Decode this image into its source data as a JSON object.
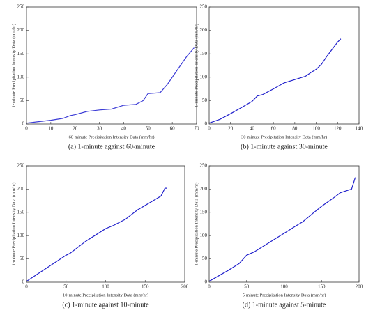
{
  "chart_data": [
    {
      "type": "line",
      "caption": "(a) 1-minute against 60-minute",
      "xlabel": "60-minute Precipitation Intensity Data (mm/hr)",
      "ylabel": "1-minute Precipitation Intensity Data (mm/hr)",
      "x": [
        0,
        5,
        10,
        15,
        18,
        20,
        25,
        30,
        35,
        40,
        45,
        48,
        50,
        55,
        58,
        62,
        66,
        69
      ],
      "values": [
        2,
        5,
        8,
        12,
        18,
        20,
        27,
        30,
        32,
        40,
        42,
        50,
        65,
        67,
        85,
        115,
        145,
        163
      ],
      "color": "#3b3bd6",
      "xlim": [
        0,
        70
      ],
      "xticks": [
        0,
        10,
        20,
        30,
        40,
        50,
        60,
        70
      ],
      "ylim": [
        0,
        250
      ],
      "yticks": [
        0,
        50,
        100,
        150,
        200,
        250
      ]
    },
    {
      "type": "line",
      "caption": "(b) 1-minute against 30-minute",
      "xlabel": "30-minute Precipitation Intensity Data (mm/hr)",
      "ylabel": "1-minute Precipitation Intensity Data (mm/hr)",
      "x": [
        0,
        10,
        20,
        30,
        40,
        45,
        50,
        60,
        70,
        80,
        90,
        95,
        100,
        105,
        110,
        120,
        123
      ],
      "values": [
        2,
        10,
        22,
        35,
        48,
        60,
        63,
        75,
        88,
        95,
        102,
        110,
        117,
        128,
        145,
        175,
        182
      ],
      "color": "#2222cc",
      "xlim": [
        0,
        140
      ],
      "xticks": [
        0,
        20,
        40,
        60,
        80,
        100,
        120,
        140
      ],
      "ylim": [
        0,
        250
      ],
      "yticks": [
        0,
        50,
        100,
        150,
        200,
        250
      ]
    },
    {
      "type": "line",
      "caption": "(c) 1-minute against 10-minute",
      "xlabel": "10-minute Precipitation Intensity Data (mm/hr)",
      "ylabel": "1-minute Precipitation Intensity Data (mm/hr)",
      "x": [
        0,
        25,
        50,
        55,
        75,
        100,
        110,
        125,
        140,
        150,
        160,
        170,
        175,
        178
      ],
      "values": [
        2,
        30,
        58,
        62,
        88,
        115,
        122,
        135,
        155,
        165,
        175,
        185,
        202,
        202
      ],
      "color": "#2222cc",
      "xlim": [
        0,
        200
      ],
      "xticks": [
        0,
        50,
        100,
        150,
        200
      ],
      "ylim": [
        0,
        250
      ],
      "yticks": [
        0,
        50,
        100,
        150,
        200,
        250
      ]
    },
    {
      "type": "line",
      "caption": "(d) 1-minute against 5-minute",
      "xlabel": "5-minute Precipitation Intensity Data (mm/hr)",
      "ylabel": "1-minute Precipitation Intensity Data (mm/hr)",
      "x": [
        0,
        25,
        40,
        50,
        60,
        75,
        90,
        100,
        115,
        125,
        140,
        150,
        165,
        175,
        190,
        195
      ],
      "values": [
        2,
        25,
        40,
        58,
        65,
        80,
        95,
        105,
        120,
        130,
        150,
        163,
        180,
        192,
        200,
        225
      ],
      "color": "#2222cc",
      "xlim": [
        0,
        200
      ],
      "xticks": [
        0,
        50,
        100,
        150,
        200
      ],
      "ylim": [
        0,
        250
      ],
      "yticks": [
        0,
        50,
        100,
        150,
        200,
        250
      ]
    }
  ]
}
